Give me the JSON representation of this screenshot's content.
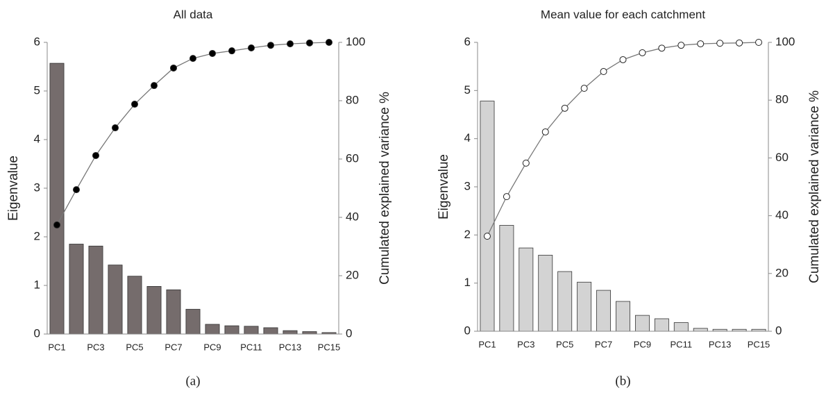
{
  "chart_data": [
    {
      "type": "bar",
      "title": "All data",
      "ylabel": "Eigenvalue",
      "y2label": "Cumulated explained variance %",
      "panel_label": "(a)",
      "categories": [
        "PC1",
        null,
        "PC3",
        null,
        "PC5",
        null,
        "PC7",
        null,
        "PC9",
        null,
        "PC11",
        null,
        "PC13",
        null,
        "PC15"
      ],
      "series": [
        {
          "type": "bar",
          "color": "#756c6c",
          "values": [
            5.57,
            1.85,
            1.81,
            1.42,
            1.19,
            0.98,
            0.91,
            0.51,
            0.2,
            0.17,
            0.16,
            0.13,
            0.07,
            0.05,
            0.03
          ]
        },
        {
          "type": "line",
          "axis": "y2",
          "color": "#777777",
          "marker_fill": "#000000",
          "values": [
            37.4,
            49.5,
            61.2,
            70.7,
            78.8,
            85.2,
            91.2,
            94.5,
            96.2,
            97.1,
            98.1,
            99,
            99.5,
            99.8,
            100
          ]
        }
      ],
      "ylim": [
        0,
        6
      ],
      "yticks": [
        0,
        1,
        2,
        3,
        4,
        5,
        6
      ],
      "y2lim": [
        0,
        100
      ],
      "y2ticks": [
        0,
        20,
        40,
        60,
        80,
        100
      ]
    },
    {
      "type": "bar",
      "title": "Mean value for each catchment",
      "ylabel": "Eigenvalue",
      "y2label": "Cumulated explained variance %",
      "panel_label": "(b)",
      "categories": [
        "PC1",
        null,
        "PC3",
        null,
        "PC5",
        null,
        "PC7",
        null,
        "PC9",
        null,
        "PC11",
        null,
        "PC13",
        null,
        "PC15"
      ],
      "series": [
        {
          "type": "bar",
          "color": "#d3d3d3",
          "values": [
            4.78,
            2.2,
            1.73,
            1.58,
            1.24,
            1.02,
            0.85,
            0.62,
            0.33,
            0.26,
            0.18,
            0.06,
            0.04,
            0.04,
            0.04
          ]
        },
        {
          "type": "line",
          "axis": "y2",
          "color": "#777777",
          "marker_fill": "#ffffff",
          "values": [
            32.9,
            46.6,
            58.2,
            69,
            77.2,
            84.1,
            89.9,
            94,
            96.4,
            98,
            99,
            99.5,
            99.7,
            99.8,
            100
          ]
        }
      ],
      "ylim": [
        0,
        6
      ],
      "yticks": [
        0,
        1,
        2,
        3,
        4,
        5,
        6
      ],
      "y2lim": [
        0,
        100
      ],
      "y2ticks": [
        0,
        20,
        40,
        60,
        80,
        100
      ]
    }
  ]
}
